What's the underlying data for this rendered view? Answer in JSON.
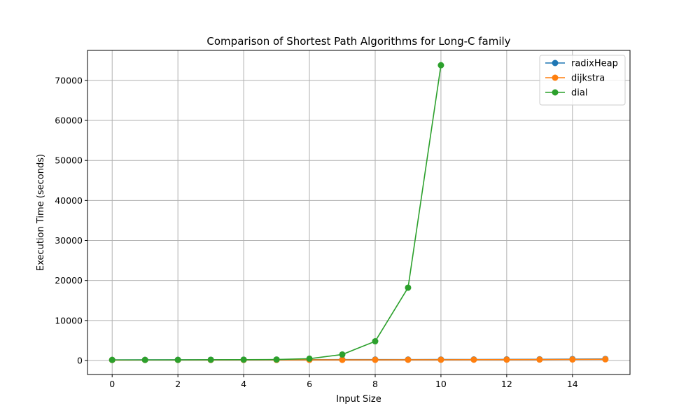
{
  "chart_data": {
    "type": "line",
    "title": "Comparison of Shortest Path Algorithms for Long-C family",
    "xlabel": "Input Size",
    "ylabel": "Execution Time (seconds)",
    "xlim": [
      -0.75,
      15.75
    ],
    "ylim": [
      -3500,
      77500
    ],
    "xticks": [
      0,
      2,
      4,
      6,
      8,
      10,
      12,
      14
    ],
    "yticks": [
      0,
      10000,
      20000,
      30000,
      40000,
      50000,
      60000,
      70000
    ],
    "grid": true,
    "legend_position": "top-right",
    "series": [
      {
        "name": "radixHeap",
        "color": "#1f77b4",
        "x": [
          0,
          1,
          2,
          3,
          4,
          5,
          6,
          7,
          8,
          9,
          10,
          11,
          12,
          13,
          14,
          15
        ],
        "y": [
          150,
          160,
          170,
          180,
          190,
          200,
          210,
          220,
          230,
          240,
          250,
          260,
          280,
          300,
          350,
          380
        ]
      },
      {
        "name": "dijkstra",
        "color": "#ff7f0e",
        "x": [
          0,
          1,
          2,
          3,
          4,
          5,
          6,
          7,
          8,
          9,
          10,
          11,
          12,
          13,
          14,
          15
        ],
        "y": [
          120,
          130,
          130,
          140,
          150,
          150,
          160,
          160,
          170,
          180,
          190,
          200,
          210,
          230,
          260,
          300
        ]
      },
      {
        "name": "dial",
        "color": "#2ca02c",
        "x": [
          0,
          1,
          2,
          3,
          4,
          5,
          6,
          7,
          8,
          9,
          10
        ],
        "y": [
          150,
          150,
          160,
          180,
          200,
          250,
          450,
          1500,
          4800,
          18200,
          73800
        ]
      }
    ]
  }
}
